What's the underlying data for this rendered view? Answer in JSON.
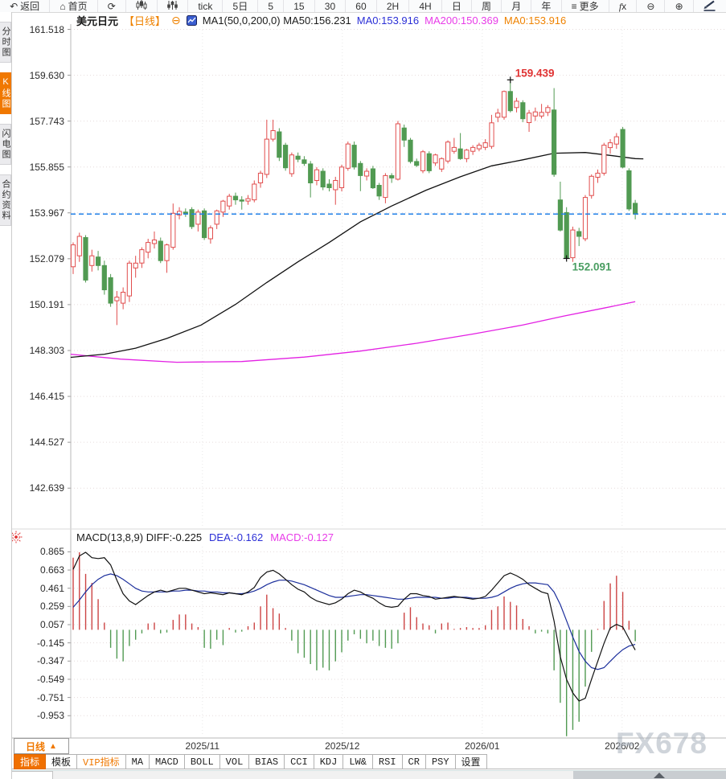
{
  "window": {
    "title": "美元日元 日线 K线图"
  },
  "toolbar": {
    "items": [
      {
        "icon": "back-arrow-icon",
        "label": "返回"
      },
      {
        "icon": "home-icon",
        "label": "首页"
      },
      {
        "icon": "refresh-icon",
        "label": ""
      },
      {
        "icon": "kline-chart-icon",
        "label": ""
      },
      {
        "icon": "sliders-icon",
        "label": ""
      },
      {
        "icon": "",
        "label": "tick"
      },
      {
        "icon": "",
        "label": "5日"
      },
      {
        "icon": "",
        "label": "5"
      },
      {
        "icon": "",
        "label": "15"
      },
      {
        "icon": "",
        "label": "30"
      },
      {
        "icon": "",
        "label": "60"
      },
      {
        "icon": "",
        "label": "2H"
      },
      {
        "icon": "",
        "label": "4H"
      },
      {
        "icon": "",
        "label": "日"
      },
      {
        "icon": "",
        "label": "周"
      },
      {
        "icon": "",
        "label": "月"
      },
      {
        "icon": "",
        "label": "年"
      },
      {
        "icon": "menu-icon",
        "label": "更多"
      },
      {
        "icon": "fx-icon",
        "label": ""
      },
      {
        "icon": "zoom-out-icon",
        "label": ""
      },
      {
        "icon": "zoom-in-icon",
        "label": ""
      },
      {
        "icon": "draw-line-icon",
        "label": ""
      }
    ]
  },
  "sidebar": {
    "tabs": [
      {
        "label": "分时图",
        "selected": false
      },
      {
        "label": "K线图",
        "selected": true
      },
      {
        "label": "闪电图",
        "selected": false
      },
      {
        "label": "合约资料",
        "selected": false
      }
    ]
  },
  "header": {
    "symbol": "美元日元",
    "period": "【日线】",
    "collapse_icon": "⊖",
    "ma_settings": "MA1(50,0,200,0) MA50:156.231",
    "ma0_blue": "MA0:153.916",
    "ma200": "MA200:150.369",
    "ma0_orange": "MA0:153.916"
  },
  "macd_header": {
    "title": "MACD(13,8,9) DIFF:-0.225",
    "dea": "DEA:-0.162",
    "macd": "MACD:-0.127"
  },
  "colors": {
    "up": "#e14d4d",
    "down": "#519a52",
    "ma50": "#111111",
    "ma200": "#e320e3",
    "price_line": "#2080e8",
    "diff": "#111111",
    "dea": "#1c2f9c",
    "hist_pos": "#cc4444",
    "hist_neg": "#519a52",
    "accent": "#f07800",
    "annotation_high": "#e03333",
    "annotation_low": "#4a9e62"
  },
  "chart_data": [
    {
      "type": "candlestick",
      "title": "美元日元 日线",
      "ylabel": "price",
      "y_ticks": [
        161.518,
        159.63,
        157.743,
        155.855,
        153.967,
        152.079,
        150.191,
        148.303,
        146.415,
        144.527,
        142.639
      ],
      "x_ticks": [
        {
          "label": "2025/11",
          "index": 21.7
        },
        {
          "label": "2025/12",
          "index": 44.1
        },
        {
          "label": "2026/01",
          "index": 66.5
        },
        {
          "label": "2026/02",
          "index": 88.9
        }
      ],
      "current_price": 153.916,
      "annotations": [
        {
          "text": "159.439",
          "index": 71,
          "price": 159.439,
          "kind": "high"
        },
        {
          "text": "152.091",
          "index": 80,
          "price": 152.091,
          "kind": "low"
        }
      ],
      "ohlc": [
        [
          151.75,
          152.75,
          151.45,
          152.65
        ],
        [
          152.2,
          153.15,
          151.95,
          153.0
        ],
        [
          152.95,
          153.05,
          151.1,
          151.2
        ],
        [
          151.8,
          152.45,
          151.55,
          152.2
        ],
        [
          152.15,
          152.4,
          151.6,
          151.8
        ],
        [
          151.8,
          152.0,
          150.6,
          150.8
        ],
        [
          151.3,
          151.45,
          150.1,
          150.25
        ],
        [
          150.35,
          150.75,
          149.35,
          150.5
        ],
        [
          150.25,
          150.9,
          150.0,
          150.7
        ],
        [
          150.55,
          152.0,
          150.3,
          151.9
        ],
        [
          151.7,
          152.2,
          151.3,
          151.9
        ],
        [
          151.9,
          152.55,
          151.7,
          152.45
        ],
        [
          152.35,
          152.9,
          152.1,
          152.75
        ],
        [
          152.7,
          153.2,
          152.5,
          152.85
        ],
        [
          152.8,
          152.95,
          151.9,
          152.0
        ],
        [
          152.0,
          152.7,
          151.5,
          152.65
        ],
        [
          152.55,
          154.35,
          152.45,
          153.95
        ],
        [
          153.88,
          154.2,
          153.7,
          154.03
        ],
        [
          154.0,
          154.15,
          153.8,
          153.95
        ],
        [
          154.1,
          154.2,
          153.3,
          153.4
        ],
        [
          153.5,
          154.1,
          153.2,
          154.0
        ],
        [
          154.05,
          154.15,
          152.85,
          152.95
        ],
        [
          152.9,
          153.45,
          152.7,
          153.35
        ],
        [
          153.5,
          154.1,
          153.3,
          154.05
        ],
        [
          154.0,
          154.5,
          153.8,
          154.45
        ],
        [
          154.25,
          154.75,
          154.1,
          154.65
        ],
        [
          154.65,
          154.8,
          154.3,
          154.5
        ],
        [
          154.5,
          154.65,
          154.1,
          154.45
        ],
        [
          154.45,
          154.7,
          154.3,
          154.55
        ],
        [
          154.5,
          155.3,
          154.4,
          155.15
        ],
        [
          155.2,
          155.7,
          155.0,
          155.6
        ],
        [
          155.55,
          157.8,
          155.4,
          157.0
        ],
        [
          157.0,
          157.8,
          156.9,
          157.35
        ],
        [
          157.3,
          157.45,
          156.1,
          156.25
        ],
        [
          156.75,
          156.85,
          155.7,
          155.82
        ],
        [
          155.58,
          156.45,
          155.45,
          156.35
        ],
        [
          156.3,
          156.45,
          156.05,
          156.17
        ],
        [
          156.15,
          156.3,
          155.9,
          156.0
        ],
        [
          155.98,
          156.1,
          154.6,
          155.2
        ],
        [
          155.3,
          155.85,
          155.1,
          155.74
        ],
        [
          155.68,
          155.8,
          154.9,
          155.03
        ],
        [
          155.15,
          155.35,
          154.85,
          155.0
        ],
        [
          154.92,
          155.45,
          154.3,
          155.3
        ],
        [
          155.0,
          155.95,
          154.85,
          155.85
        ],
        [
          155.8,
          156.9,
          155.7,
          156.8
        ],
        [
          156.75,
          156.9,
          155.75,
          155.85
        ],
        [
          156.0,
          156.1,
          154.86,
          155.5
        ],
        [
          155.48,
          155.8,
          155.3,
          155.68
        ],
        [
          155.78,
          155.9,
          154.95,
          155.0
        ],
        [
          155.1,
          155.2,
          154.5,
          154.66
        ],
        [
          154.6,
          155.6,
          154.36,
          155.5
        ],
        [
          155.5,
          155.6,
          155.2,
          155.4
        ],
        [
          155.35,
          157.75,
          155.3,
          157.63
        ],
        [
          157.46,
          157.6,
          156.68,
          156.96
        ],
        [
          156.96,
          157.05,
          156.0,
          156.08
        ],
        [
          156.08,
          156.2,
          155.85,
          155.92
        ],
        [
          155.7,
          156.55,
          155.6,
          156.48
        ],
        [
          156.4,
          156.5,
          155.6,
          155.7
        ],
        [
          156.02,
          156.4,
          155.9,
          156.35
        ],
        [
          155.77,
          156.25,
          155.65,
          156.2
        ],
        [
          156.1,
          156.95,
          156.0,
          156.88
        ],
        [
          156.5,
          157.05,
          156.4,
          156.66
        ],
        [
          156.6,
          157.25,
          156.15,
          156.2
        ],
        [
          156.2,
          156.6,
          156.05,
          156.55
        ],
        [
          156.5,
          156.75,
          156.35,
          156.66
        ],
        [
          156.6,
          156.85,
          156.5,
          156.75
        ],
        [
          156.66,
          157.0,
          156.55,
          156.85
        ],
        [
          156.7,
          158.0,
          156.6,
          157.67
        ],
        [
          157.9,
          158.25,
          157.7,
          158.07
        ],
        [
          157.9,
          159.0,
          157.8,
          158.96
        ],
        [
          158.96,
          159.439,
          158.1,
          158.17
        ],
        [
          158.3,
          158.7,
          158.1,
          158.56
        ],
        [
          158.5,
          158.6,
          157.7,
          157.84
        ],
        [
          157.68,
          158.2,
          157.3,
          158.07
        ],
        [
          157.95,
          158.3,
          157.75,
          158.12
        ],
        [
          157.95,
          158.45,
          157.85,
          158.1
        ],
        [
          158.1,
          158.4,
          157.95,
          158.3
        ],
        [
          158.2,
          159.1,
          155.45,
          155.55
        ],
        [
          154.5,
          155.25,
          153.2,
          153.26
        ],
        [
          153.98,
          154.2,
          152.091,
          152.1
        ],
        [
          152.12,
          153.4,
          151.95,
          153.26
        ],
        [
          153.2,
          153.35,
          152.6,
          153.0
        ],
        [
          152.9,
          154.7,
          152.8,
          154.6
        ],
        [
          154.68,
          155.55,
          154.55,
          155.47
        ],
        [
          155.43,
          155.75,
          155.2,
          155.6
        ],
        [
          155.6,
          156.85,
          155.5,
          156.75
        ],
        [
          156.65,
          157.0,
          156.4,
          156.85
        ],
        [
          156.8,
          157.25,
          156.6,
          157.1
        ],
        [
          157.4,
          157.5,
          155.8,
          155.85
        ],
        [
          155.7,
          155.8,
          154.05,
          154.13
        ],
        [
          154.36,
          154.5,
          153.7,
          153.916
        ]
      ],
      "ma50_points": [
        [
          0.6,
          148.02
        ],
        [
          6,
          148.15
        ],
        [
          11,
          148.4
        ],
        [
          16,
          148.8
        ],
        [
          21.5,
          149.35
        ],
        [
          27,
          150.2
        ],
        [
          32,
          151.1
        ],
        [
          37,
          151.95
        ],
        [
          42,
          152.75
        ],
        [
          47,
          153.6
        ],
        [
          52,
          154.25
        ],
        [
          57.5,
          154.9
        ],
        [
          63,
          155.45
        ],
        [
          68,
          155.9
        ],
        [
          73,
          156.15
        ],
        [
          78,
          156.42
        ],
        [
          83,
          156.45
        ],
        [
          87,
          156.33
        ],
        [
          91,
          156.2
        ],
        [
          92.3,
          156.19
        ]
      ],
      "ma200_points": [
        [
          0.6,
          148.15
        ],
        [
          8.6,
          147.95
        ],
        [
          17.6,
          147.82
        ],
        [
          28,
          147.85
        ],
        [
          38,
          148.03
        ],
        [
          47,
          148.28
        ],
        [
          56,
          148.6
        ],
        [
          65,
          148.98
        ],
        [
          73,
          149.35
        ],
        [
          79.5,
          149.72
        ],
        [
          86,
          150.05
        ],
        [
          91,
          150.31
        ]
      ]
    },
    {
      "type": "macd",
      "title": "MACD(13,8,9)",
      "y_ticks": [
        0.865,
        0.663,
        0.461,
        0.259,
        0.057,
        -0.145,
        -0.347,
        -0.549,
        -0.751,
        -0.953
      ],
      "hist": [
        0.8,
        0.86,
        0.62,
        0.52,
        0.34,
        0.08,
        -0.2,
        -0.32,
        -0.35,
        -0.18,
        -0.11,
        -0.04,
        0.07,
        0.08,
        -0.04,
        -0.03,
        0.11,
        0.17,
        0.17,
        0.07,
        0.03,
        -0.2,
        -0.21,
        -0.11,
        -0.17,
        0.02,
        -0.03,
        -0.02,
        0.04,
        0.08,
        0.26,
        0.39,
        0.24,
        0.18,
        0.02,
        -0.12,
        -0.26,
        -0.31,
        -0.38,
        -0.45,
        -0.42,
        -0.45,
        -0.35,
        -0.25,
        -0.12,
        -0.05,
        -0.1,
        -0.15,
        -0.12,
        -0.18,
        -0.2,
        -0.21,
        -0.15,
        0.19,
        0.25,
        0.14,
        0.07,
        0.05,
        -0.04,
        0.07,
        0.08,
        0.01,
        0.02,
        0.03,
        0.02,
        0.02,
        0.05,
        0.22,
        0.26,
        0.37,
        0.31,
        0.27,
        0.12,
        0.04,
        -0.04,
        -0.02,
        -0.04,
        -0.45,
        -0.81,
        -1.18,
        -1.11,
        -1.02,
        -0.63,
        -0.245,
        0.01,
        0.32,
        0.515,
        0.6,
        0.42,
        0.1,
        -0.127
      ],
      "diff": [
        0.67,
        0.82,
        0.86,
        0.8,
        0.79,
        0.8,
        0.72,
        0.55,
        0.4,
        0.32,
        0.28,
        0.33,
        0.38,
        0.42,
        0.44,
        0.42,
        0.44,
        0.46,
        0.46,
        0.44,
        0.42,
        0.4,
        0.41,
        0.4,
        0.39,
        0.41,
        0.4,
        0.39,
        0.42,
        0.47,
        0.58,
        0.64,
        0.66,
        0.62,
        0.56,
        0.5,
        0.45,
        0.42,
        0.36,
        0.32,
        0.3,
        0.28,
        0.3,
        0.34,
        0.4,
        0.44,
        0.42,
        0.38,
        0.35,
        0.3,
        0.26,
        0.25,
        0.26,
        0.34,
        0.4,
        0.4,
        0.38,
        0.37,
        0.34,
        0.35,
        0.36,
        0.37,
        0.36,
        0.35,
        0.34,
        0.35,
        0.37,
        0.44,
        0.52,
        0.6,
        0.63,
        0.6,
        0.56,
        0.5,
        0.46,
        0.42,
        0.4,
        0.1,
        -0.3,
        -0.55,
        -0.7,
        -0.79,
        -0.76,
        -0.55,
        -0.35,
        -0.15,
        0.02,
        0.06,
        0.03,
        -0.1,
        -0.225
      ],
      "dea": [
        0.25,
        0.33,
        0.42,
        0.5,
        0.56,
        0.6,
        0.62,
        0.6,
        0.56,
        0.51,
        0.46,
        0.43,
        0.42,
        0.42,
        0.42,
        0.42,
        0.43,
        0.43,
        0.44,
        0.44,
        0.43,
        0.43,
        0.42,
        0.42,
        0.41,
        0.41,
        0.4,
        0.4,
        0.41,
        0.43,
        0.46,
        0.5,
        0.53,
        0.55,
        0.55,
        0.54,
        0.52,
        0.5,
        0.47,
        0.44,
        0.41,
        0.38,
        0.36,
        0.36,
        0.37,
        0.38,
        0.39,
        0.39,
        0.38,
        0.37,
        0.36,
        0.35,
        0.34,
        0.34,
        0.35,
        0.36,
        0.36,
        0.36,
        0.36,
        0.35,
        0.35,
        0.36,
        0.36,
        0.36,
        0.35,
        0.35,
        0.35,
        0.36,
        0.38,
        0.42,
        0.46,
        0.49,
        0.51,
        0.52,
        0.52,
        0.51,
        0.5,
        0.42,
        0.28,
        0.1,
        -0.08,
        -0.24,
        -0.35,
        -0.42,
        -0.44,
        -0.42,
        -0.35,
        -0.28,
        -0.22,
        -0.18,
        -0.162
      ]
    }
  ],
  "bottom": {
    "period_button": "日线",
    "period_arrow": "▲",
    "tabs": [
      {
        "label": "指标",
        "style": "selected"
      },
      {
        "label": "模板",
        "style": "normal"
      },
      {
        "label": "VIP指标",
        "style": "vip"
      },
      {
        "label": "MA",
        "style": "normal"
      },
      {
        "label": "MACD",
        "style": "normal"
      },
      {
        "label": "BOLL",
        "style": "normal"
      },
      {
        "label": "VOL",
        "style": "normal"
      },
      {
        "label": "BIAS",
        "style": "normal"
      },
      {
        "label": "CCI",
        "style": "normal"
      },
      {
        "label": "KDJ",
        "style": "normal"
      },
      {
        "label": "LW&",
        "style": "normal"
      },
      {
        "label": "RSI",
        "style": "normal"
      },
      {
        "label": "CR",
        "style": "normal"
      },
      {
        "label": "PSY",
        "style": "normal"
      },
      {
        "label": "设置",
        "style": "normal"
      }
    ],
    "watermark": "FX678",
    "collapse_arrow": "collapse-up-handle"
  }
}
